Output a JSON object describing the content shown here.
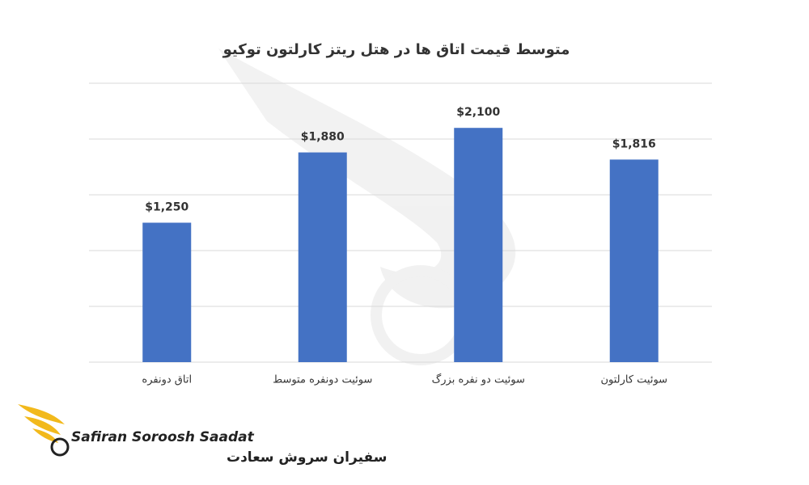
{
  "chart_data": {
    "type": "bar",
    "title": "متوسط قیمت اتاق ها در هتل ریتز کارلتون توکیو",
    "categories": [
      "اتاق دونفره",
      "سوئیت دونفره متوسط",
      "سوئیت دو نفره بزرگ",
      "سوئیت کارلتون"
    ],
    "values": [
      1250,
      1880,
      2100,
      1816
    ],
    "value_labels": [
      "$1,250",
      "$1,880",
      "$2,100",
      "$1,816"
    ],
    "color": "#4472c4",
    "ylim": [
      0,
      2500
    ],
    "yticks": [
      0,
      500,
      1000,
      1500,
      2000,
      2500
    ],
    "grid": true
  },
  "logo": {
    "name_en": "Safiran Soroosh Saadat",
    "name_fa": "سفیران سروش سعادت"
  }
}
